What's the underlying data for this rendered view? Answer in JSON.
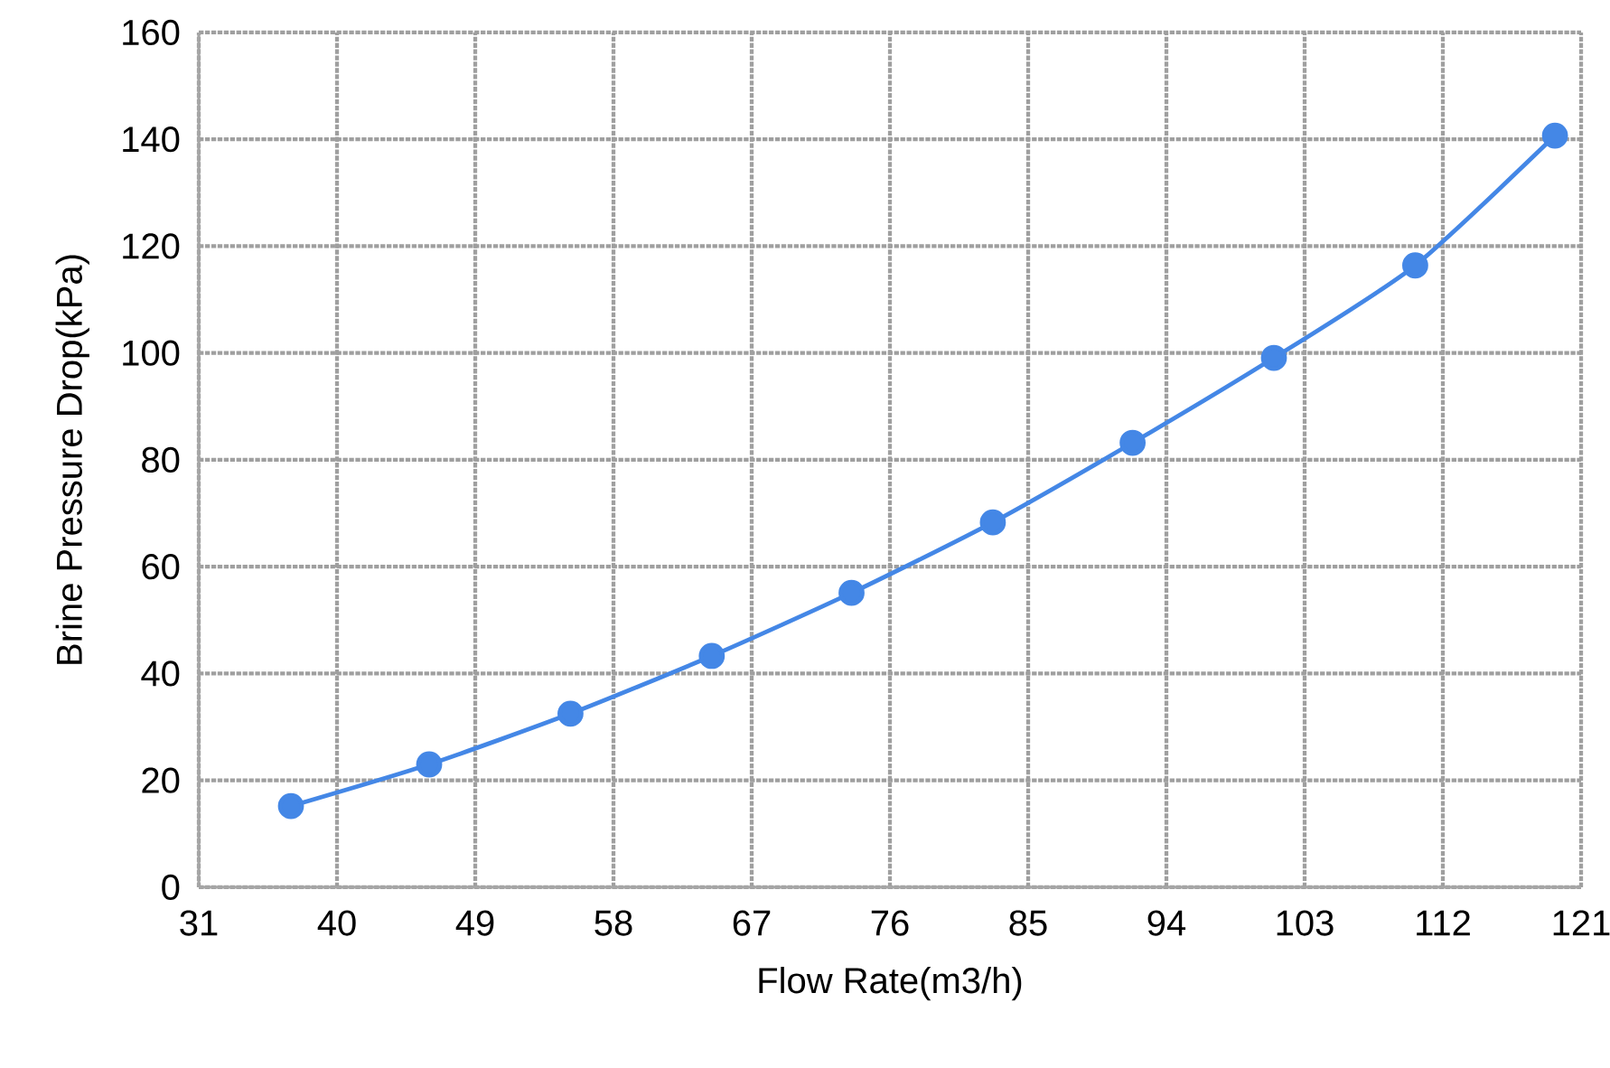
{
  "chart_data": {
    "type": "line",
    "xlabel": "Flow Rate(m3/h)",
    "ylabel": "Brine Pressure Drop(kPa)",
    "x": [
      37,
      46,
      55.2,
      64.4,
      73.5,
      82.7,
      91.8,
      101,
      110.2,
      119.3
    ],
    "series": [
      {
        "color": "#4487e6",
        "values": [
          15.2,
          23,
          32.5,
          43.3,
          55.1,
          68.3,
          83.2,
          99.1,
          116.4,
          140.7
        ]
      }
    ],
    "xlim": [
      31,
      121
    ],
    "xticks": [
      31,
      40,
      49,
      58,
      67,
      76,
      85,
      94,
      103,
      112,
      121
    ],
    "ylim": [
      0,
      160
    ],
    "yticks": [
      0,
      20,
      40,
      60,
      80,
      100,
      120,
      140,
      160
    ],
    "grid": true,
    "marker": "circle",
    "line_style": "solid"
  }
}
